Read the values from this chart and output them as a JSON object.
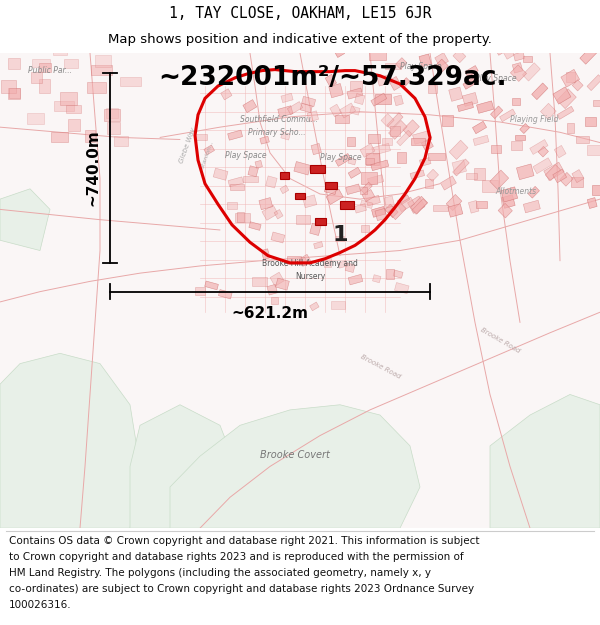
{
  "title_line1": "1, TAY CLOSE, OAKHAM, LE15 6JR",
  "title_line2": "Map shows position and indicative extent of the property.",
  "area_text": "~232001m²/~57.329ac.",
  "dim_vertical": "~740.0m",
  "dim_horizontal": "~621.2m",
  "property_number": "1",
  "copyright_lines": [
    "Contains OS data © Crown copyright and database right 2021. This information is subject",
    "to Crown copyright and database rights 2023 and is reproduced with the permission of",
    "HM Land Registry. The polygons (including the associated geometry, namely x, y",
    "co-ordinates) are subject to Crown copyright and database rights 2023 Ordnance Survey",
    "100026316."
  ],
  "title_fontsize": 10.5,
  "subtitle_fontsize": 9.5,
  "area_fontsize": 19,
  "dim_fontsize": 11,
  "copyright_fontsize": 7.5,
  "figure_bg": "#ffffff",
  "map_bg": "#f9f5f5"
}
